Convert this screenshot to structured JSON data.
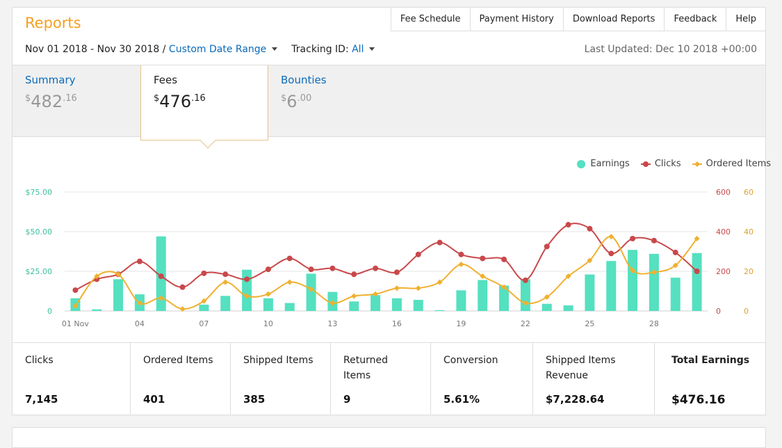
{
  "header": {
    "title": "Reports",
    "links": [
      "Fee Schedule",
      "Payment History",
      "Download Reports",
      "Feedback",
      "Help"
    ]
  },
  "filters": {
    "date_range": "Nov 01 2018 - Nov 30 2018",
    "separator": "/",
    "custom_range": "Custom Date Range",
    "tracking_label": "Tracking ID:",
    "tracking_value": "All",
    "last_updated": "Last Updated: Dec 10 2018 +00:00"
  },
  "tabs": [
    {
      "label": "Summary",
      "currency": "$",
      "whole": "482",
      "cents": ".16"
    },
    {
      "label": "Fees",
      "currency": "$",
      "whole": "476",
      "cents": ".16"
    },
    {
      "label": "Bounties",
      "currency": "$",
      "whole": "6",
      "cents": ".00"
    }
  ],
  "legend": [
    {
      "label": "Earnings",
      "color": "#55e0c0",
      "icon": "circle-icon"
    },
    {
      "label": "Clicks",
      "color": "#c9484a",
      "icon": "circle-icon"
    },
    {
      "label": "Ordered Items",
      "color": "#f0b030",
      "icon": "diamond-icon"
    }
  ],
  "stats": [
    {
      "label": "Clicks",
      "value": "7,145"
    },
    {
      "label": "Ordered Items",
      "value": "401"
    },
    {
      "label": "Shipped Items",
      "value": "385"
    },
    {
      "label": "Returned Items",
      "value": "9"
    },
    {
      "label": "Conversion",
      "value": "5.61%"
    },
    {
      "label": "Shipped Items Revenue",
      "value": "$7,228.64"
    },
    {
      "label": "Total Earnings",
      "value": "$476.16"
    }
  ],
  "chart_data": {
    "type": "bar",
    "categories": [
      "01 Nov",
      "02",
      "03",
      "04",
      "05",
      "06",
      "07",
      "08",
      "09",
      "10",
      "11",
      "12",
      "13",
      "14",
      "15",
      "16",
      "17",
      "18",
      "19",
      "20",
      "21",
      "22",
      "23",
      "24",
      "25",
      "26",
      "27",
      "28",
      "29",
      "30"
    ],
    "x_tick_labels": [
      "01 Nov",
      "04",
      "07",
      "10",
      "13",
      "16",
      "19",
      "22",
      "25",
      "28"
    ],
    "y_left_ticks": [
      "0",
      "$25.00",
      "$50.00",
      "$75.00"
    ],
    "y_right1_ticks": [
      "0",
      "200",
      "400",
      "600"
    ],
    "y_right2_ticks": [
      "0",
      "20",
      "40",
      "60"
    ],
    "ylim_left": [
      0,
      75
    ],
    "ylim_right1": [
      0,
      600
    ],
    "ylim_right2": [
      0,
      60
    ],
    "grid": true,
    "legend_position": "top-right",
    "series": [
      {
        "name": "Earnings",
        "type": "bar",
        "axis": "left",
        "color": "#55e0c0",
        "values": [
          8,
          1,
          20,
          10.5,
          47,
          0,
          4,
          9.5,
          26,
          8,
          5,
          23.5,
          12,
          6,
          10,
          8,
          7,
          0.5,
          13,
          19.5,
          16,
          20,
          4.5,
          3.5,
          23,
          31.5,
          38.5,
          36,
          21,
          36.5
        ]
      },
      {
        "name": "Clicks",
        "type": "line",
        "axis": "right1",
        "color": "#c9484a",
        "values": [
          105,
          160,
          185,
          250,
          175,
          120,
          190,
          185,
          160,
          210,
          265,
          210,
          215,
          185,
          215,
          195,
          285,
          345,
          285,
          265,
          260,
          155,
          325,
          435,
          415,
          290,
          365,
          355,
          295,
          200
        ]
      },
      {
        "name": "Ordered Items",
        "type": "line",
        "axis": "right2",
        "color": "#f0b030",
        "values": [
          2.5,
          17.5,
          18.5,
          4,
          6.5,
          1,
          5,
          14.5,
          7.5,
          8.5,
          14.5,
          11,
          4,
          7.5,
          8.5,
          11.5,
          11.5,
          14.5,
          23.5,
          17.5,
          12,
          4,
          7,
          17.5,
          25.5,
          37.5,
          20.5,
          19.5,
          23,
          36.5
        ]
      }
    ]
  }
}
